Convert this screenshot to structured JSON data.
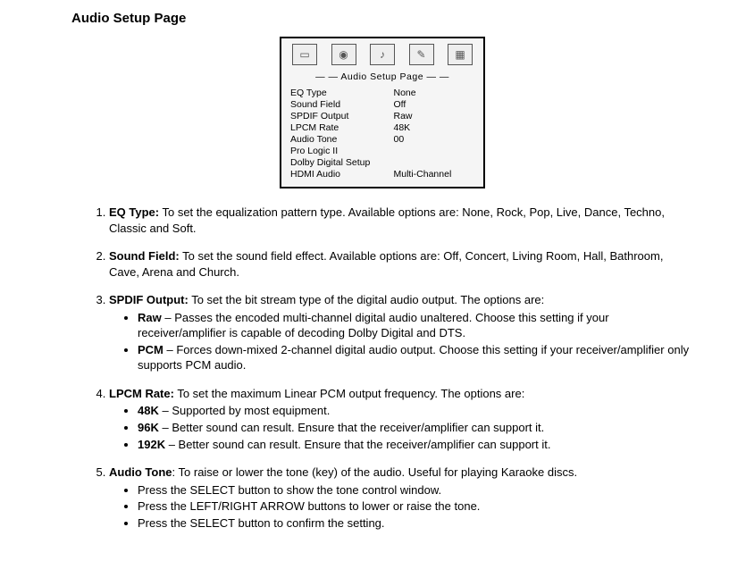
{
  "title": "Audio Setup Page",
  "box": {
    "title": "— — Audio Setup Page — —",
    "rows": [
      {
        "label": "EQ Type",
        "value": "None"
      },
      {
        "label": "Sound Field",
        "value": "Off"
      },
      {
        "label": "SPDIF Output",
        "value": "Raw"
      },
      {
        "label": "LPCM Rate",
        "value": "48K"
      },
      {
        "label": "Audio Tone",
        "value": "00"
      },
      {
        "label": "Pro Logic II",
        "value": ""
      },
      {
        "label": "Dolby Digital Setup",
        "value": ""
      },
      {
        "label": "HDMI Audio",
        "value": "Multi-Channel"
      }
    ]
  },
  "items": {
    "1": {
      "title": "EQ Type:",
      "body": " To set the equalization pattern type.  Available options are: None, Rock, Pop, Live, Dance, Techno, Classic and Soft."
    },
    "2": {
      "title": "Sound Field:",
      "body": " To set the sound field effect.  Available options are: Off, Concert, Living Room, Hall, Bathroom, Cave, Arena and Church."
    },
    "3": {
      "title": "SPDIF Output:",
      "body": " To set the bit stream type of the digital audio output.  The options are:",
      "subs": [
        {
          "title": "Raw",
          "body": " – Passes the encoded multi-channel digital audio unaltered.  Choose this setting if your receiver/amplifier is capable of decoding Dolby Digital and DTS."
        },
        {
          "title": "PCM",
          "body": " – Forces down-mixed 2-channel digital audio output.  Choose this setting if your receiver/amplifier only supports PCM audio."
        }
      ]
    },
    "4": {
      "title": "LPCM Rate:",
      "body": " To set the maximum Linear PCM output frequency.  The options are:",
      "subs": [
        {
          "title": "48K",
          "body": " – Supported by most equipment."
        },
        {
          "title": "96K",
          "body": " – Better sound can result.  Ensure that the receiver/amplifier can support it."
        },
        {
          "title": "192K",
          "body": " – Better sound can result.  Ensure that the receiver/amplifier can support it."
        }
      ]
    },
    "5": {
      "title": "Audio Tone",
      "body": ": To raise or lower the tone (key) of the audio.  Useful for playing Karaoke discs.",
      "subs": [
        {
          "title": "",
          "body": "Press the SELECT button to show the tone control window."
        },
        {
          "title": "",
          "body": "Press the LEFT/RIGHT ARROW buttons to lower or raise the tone."
        },
        {
          "title": "",
          "body": "Press the SELECT button to confirm the setting."
        }
      ]
    }
  }
}
